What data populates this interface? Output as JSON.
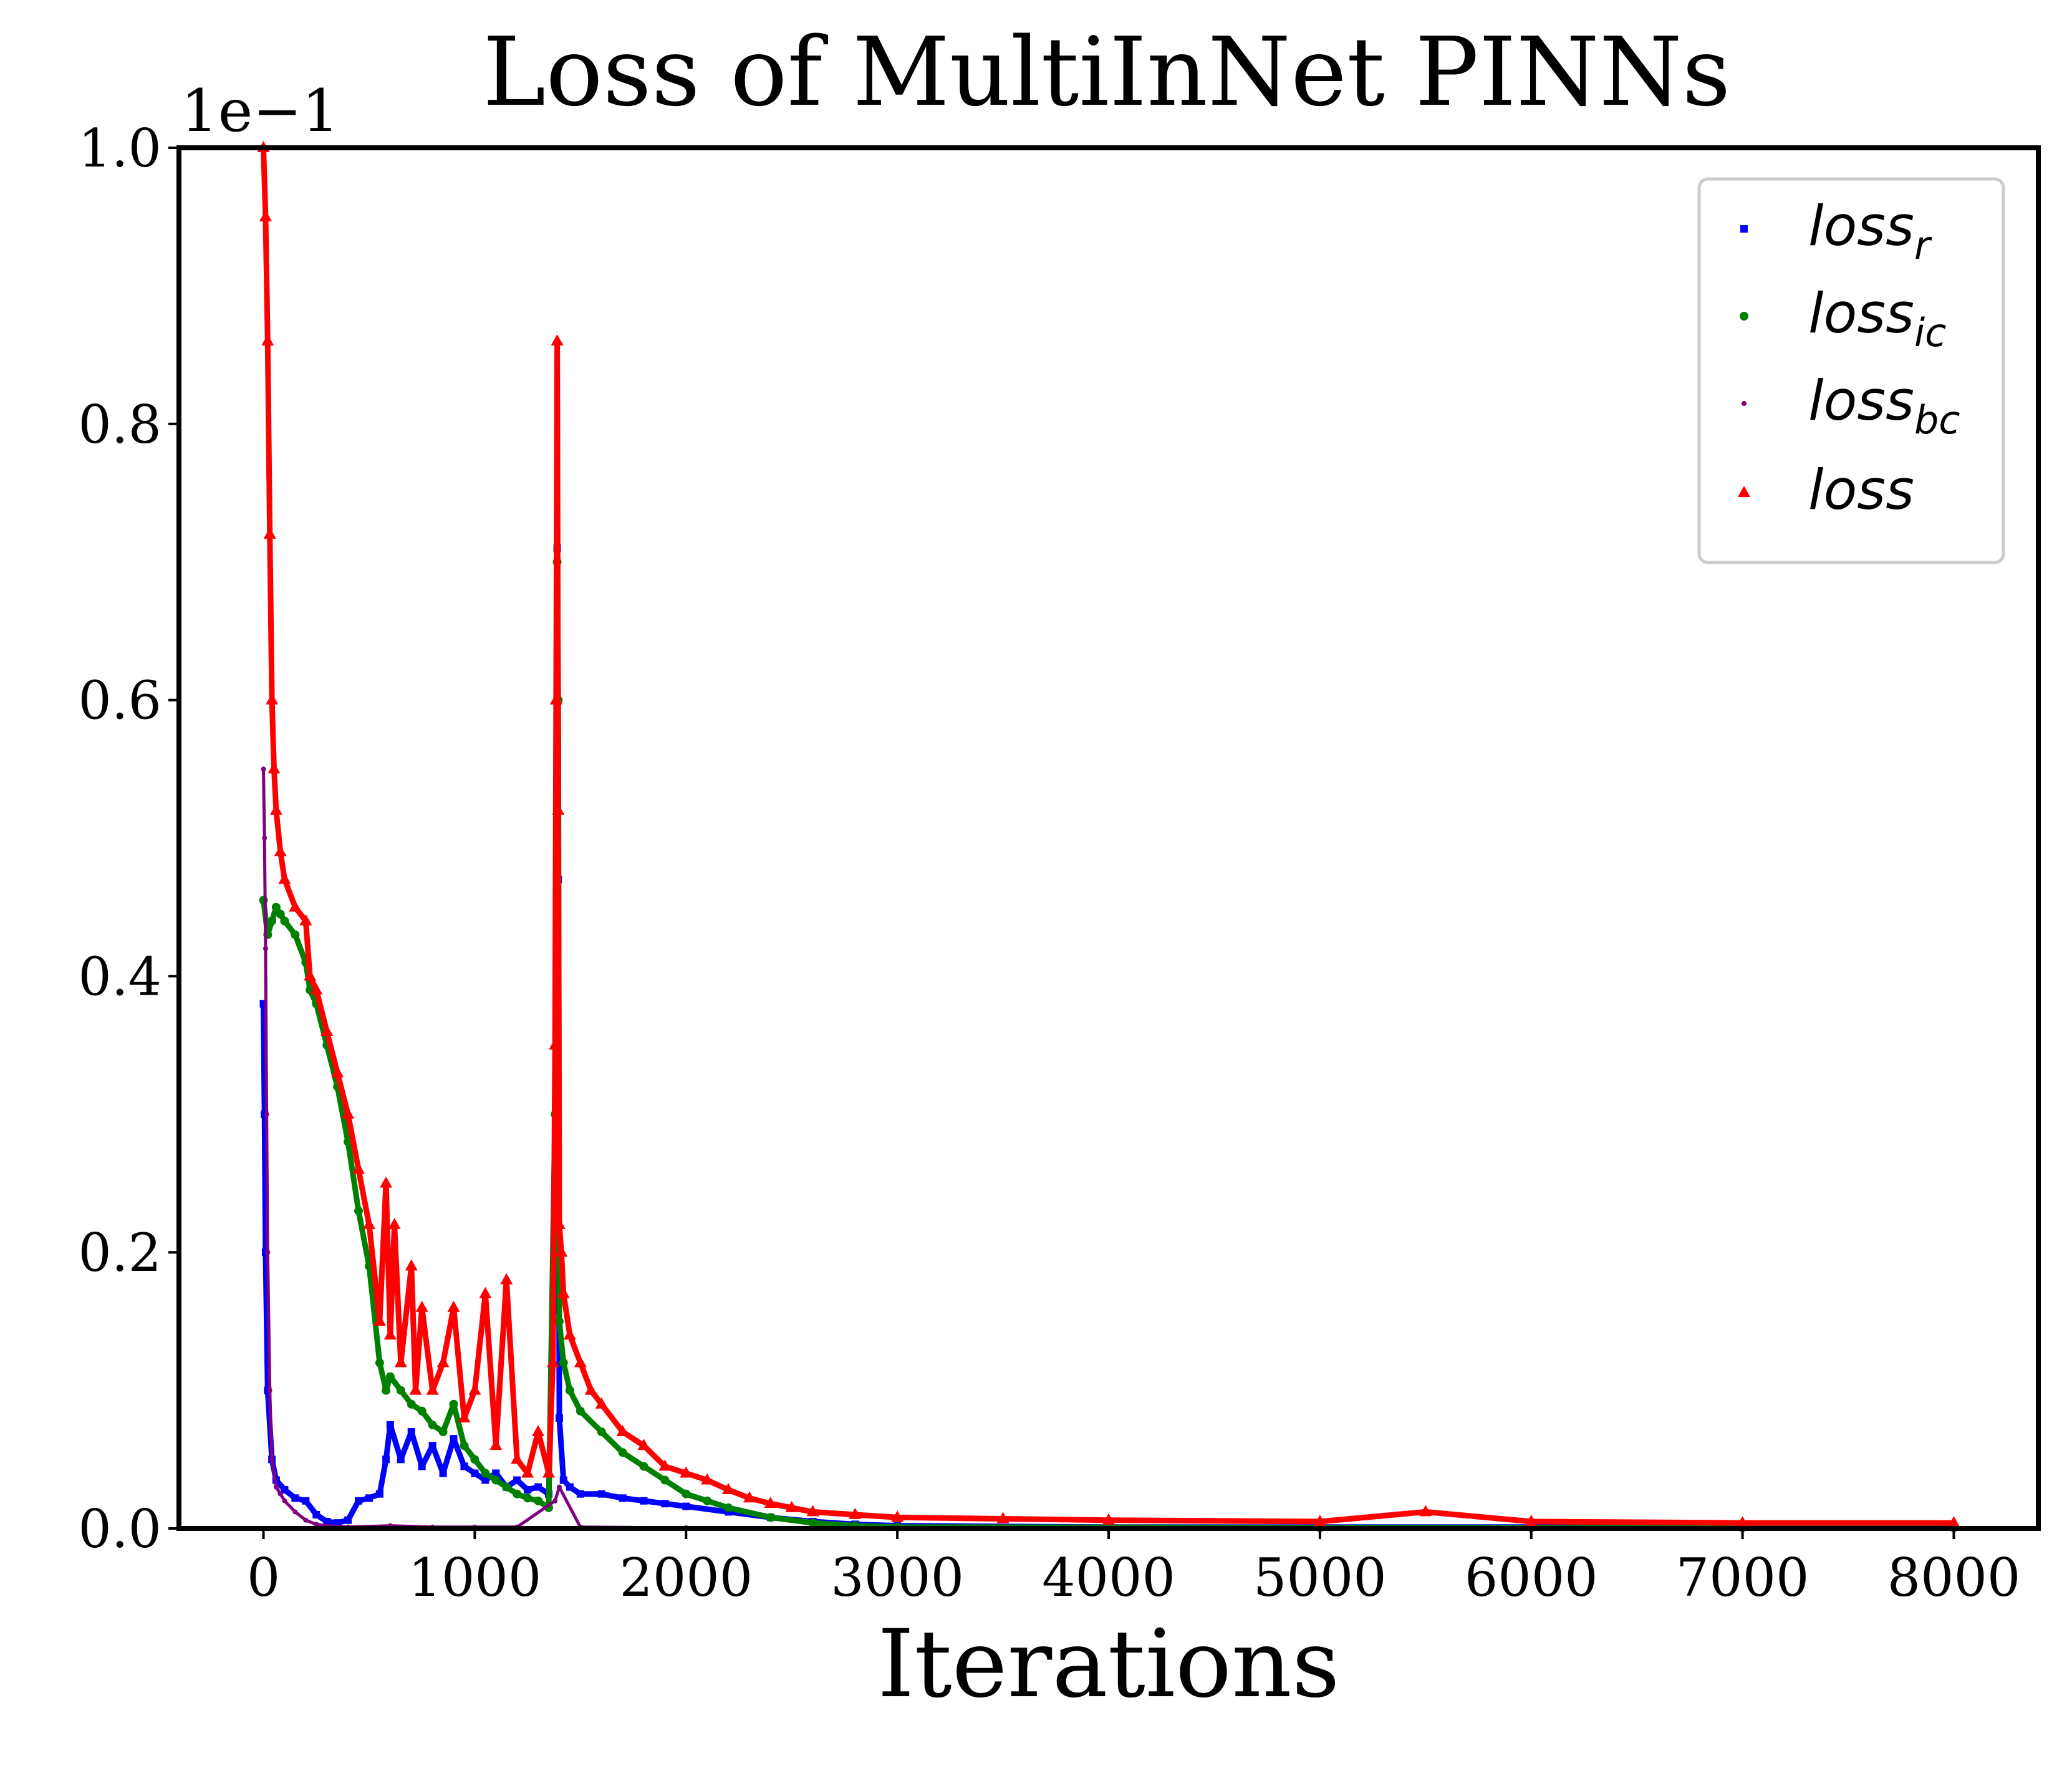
{
  "chart_data": {
    "type": "scatter",
    "title": "Loss of MultiInNet PINNs",
    "xlabel": "Iterations",
    "ylabel": "",
    "offset_text": "1e−1",
    "xlim": [
      -400,
      8400
    ],
    "ylim": [
      0.0,
      1.0
    ],
    "xticks": [
      0,
      1000,
      2000,
      3000,
      4000,
      5000,
      6000,
      7000,
      8000
    ],
    "xtick_labels": [
      "0",
      "1000",
      "2000",
      "3000",
      "4000",
      "5000",
      "6000",
      "7000",
      "8000"
    ],
    "yticks": [
      0.0,
      0.2,
      0.4,
      0.6,
      0.8,
      1.0
    ],
    "ytick_labels": [
      "0.0",
      "0.2",
      "0.4",
      "0.6",
      "0.8",
      "1.0"
    ],
    "grid": false,
    "legend_position": "top-right",
    "series": [
      {
        "name": "loss_r",
        "legend_base": "loss",
        "legend_sub": "r",
        "color": "#0000ff",
        "marker": "square",
        "x": [
          0,
          5,
          10,
          20,
          40,
          60,
          100,
          150,
          200,
          250,
          300,
          350,
          400,
          450,
          500,
          550,
          580,
          600,
          650,
          700,
          750,
          800,
          850,
          900,
          950,
          1000,
          1050,
          1100,
          1150,
          1200,
          1250,
          1300,
          1350,
          1380,
          1390,
          1395,
          1400,
          1420,
          1450,
          1500,
          1600,
          1700,
          1800,
          1900,
          2000,
          2200,
          2400,
          2600,
          2800,
          3000,
          4000,
          5000,
          6000,
          7000,
          8000
        ],
        "y": [
          0.38,
          0.3,
          0.2,
          0.1,
          0.05,
          0.035,
          0.028,
          0.022,
          0.02,
          0.01,
          0.005,
          0.004,
          0.006,
          0.02,
          0.022,
          0.025,
          0.05,
          0.075,
          0.05,
          0.07,
          0.045,
          0.06,
          0.04,
          0.065,
          0.045,
          0.04,
          0.035,
          0.04,
          0.03,
          0.035,
          0.028,
          0.03,
          0.025,
          0.2,
          0.71,
          0.47,
          0.08,
          0.035,
          0.03,
          0.025,
          0.025,
          0.022,
          0.02,
          0.018,
          0.016,
          0.012,
          0.008,
          0.005,
          0.003,
          0.002,
          0.001,
          0.001,
          0.001,
          0.001,
          0.001
        ]
      },
      {
        "name": "loss_ic",
        "legend_base": "loss",
        "legend_sub": "ic",
        "color": "#008000",
        "marker": "circle",
        "x": [
          0,
          20,
          40,
          60,
          80,
          100,
          150,
          200,
          220,
          250,
          300,
          350,
          400,
          450,
          500,
          550,
          580,
          600,
          650,
          700,
          750,
          800,
          850,
          900,
          950,
          1000,
          1050,
          1100,
          1150,
          1200,
          1250,
          1300,
          1350,
          1380,
          1390,
          1395,
          1400,
          1420,
          1450,
          1500,
          1600,
          1700,
          1800,
          1900,
          2000,
          2100,
          2200,
          2400,
          2600,
          2800,
          3000,
          4000,
          5000,
          6000,
          7000,
          8000
        ],
        "y": [
          0.455,
          0.43,
          0.44,
          0.45,
          0.445,
          0.44,
          0.43,
          0.41,
          0.39,
          0.38,
          0.35,
          0.32,
          0.28,
          0.23,
          0.19,
          0.12,
          0.1,
          0.11,
          0.1,
          0.09,
          0.085,
          0.075,
          0.07,
          0.09,
          0.06,
          0.05,
          0.04,
          0.035,
          0.03,
          0.025,
          0.022,
          0.02,
          0.015,
          0.3,
          0.7,
          0.6,
          0.15,
          0.12,
          0.1,
          0.085,
          0.07,
          0.055,
          0.045,
          0.035,
          0.025,
          0.02,
          0.015,
          0.008,
          0.004,
          0.002,
          0.001,
          0.0008,
          0.0006,
          0.0005,
          0.0005,
          0.0005
        ]
      },
      {
        "name": "loss_bc",
        "legend_base": "loss",
        "legend_sub": "bc",
        "color": "#800080",
        "marker": "point",
        "x": [
          0,
          5,
          10,
          15,
          20,
          30,
          40,
          60,
          80,
          100,
          150,
          200,
          250,
          300,
          400,
          600,
          800,
          1000,
          1200,
          1380,
          1400,
          1500,
          2000,
          3000,
          4000,
          5000,
          6000,
          7000,
          8000
        ],
        "y": [
          0.55,
          0.5,
          0.42,
          0.3,
          0.2,
          0.1,
          0.05,
          0.03,
          0.025,
          0.02,
          0.012,
          0.006,
          0.003,
          0.002,
          0.001,
          0.002,
          0.001,
          0.001,
          0.001,
          0.02,
          0.03,
          0.001,
          0.0005,
          0.0003,
          0.0002,
          0.0002,
          0.0002,
          0.0002,
          0.0002
        ]
      },
      {
        "name": "loss",
        "legend_base": "loss",
        "legend_sub": "",
        "color": "#ff0000",
        "marker": "triangle",
        "x": [
          0,
          10,
          20,
          30,
          40,
          50,
          60,
          80,
          100,
          150,
          200,
          220,
          250,
          300,
          350,
          400,
          450,
          500,
          550,
          580,
          600,
          620,
          650,
          700,
          720,
          750,
          800,
          850,
          900,
          950,
          1000,
          1050,
          1100,
          1150,
          1200,
          1250,
          1300,
          1350,
          1370,
          1380,
          1385,
          1390,
          1395,
          1400,
          1410,
          1420,
          1450,
          1500,
          1550,
          1600,
          1700,
          1800,
          1900,
          2000,
          2100,
          2200,
          2300,
          2400,
          2500,
          2600,
          2800,
          3000,
          3500,
          4000,
          5000,
          5500,
          6000,
          7000,
          8000
        ],
        "y": [
          1.0,
          0.95,
          0.86,
          0.72,
          0.6,
          0.55,
          0.52,
          0.49,
          0.47,
          0.45,
          0.44,
          0.4,
          0.39,
          0.36,
          0.33,
          0.3,
          0.26,
          0.22,
          0.15,
          0.25,
          0.14,
          0.22,
          0.12,
          0.19,
          0.1,
          0.16,
          0.1,
          0.12,
          0.16,
          0.08,
          0.1,
          0.17,
          0.06,
          0.18,
          0.05,
          0.04,
          0.07,
          0.04,
          0.12,
          0.35,
          0.6,
          0.86,
          0.52,
          0.22,
          0.2,
          0.17,
          0.14,
          0.12,
          0.1,
          0.09,
          0.07,
          0.06,
          0.045,
          0.04,
          0.035,
          0.028,
          0.022,
          0.018,
          0.015,
          0.012,
          0.01,
          0.008,
          0.007,
          0.006,
          0.005,
          0.012,
          0.005,
          0.004,
          0.004
        ]
      }
    ]
  }
}
